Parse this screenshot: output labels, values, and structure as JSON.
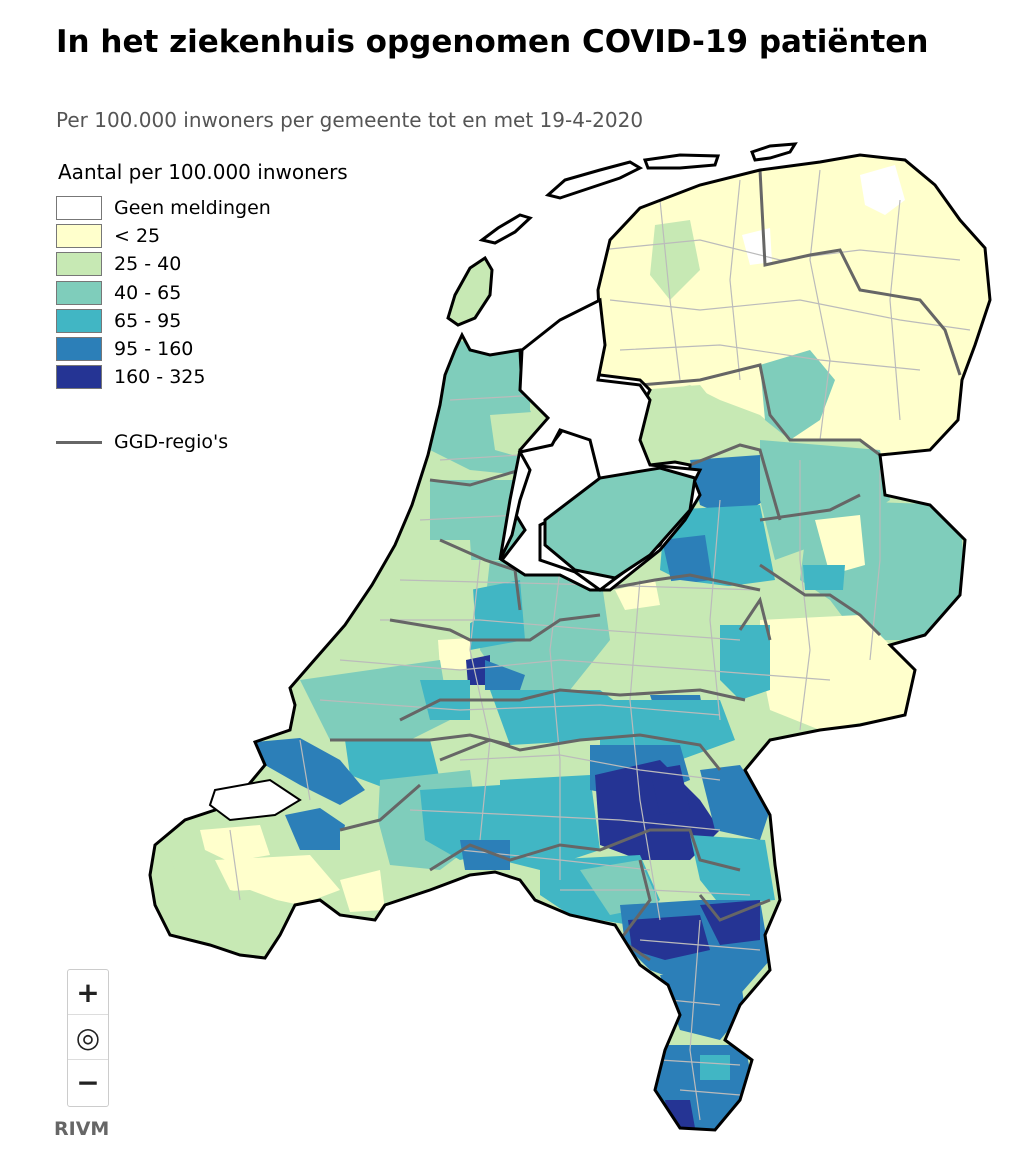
{
  "header": {
    "title": "In het ziekenhuis opgenomen COVID-19 patiënten",
    "subtitle": "Per 100.000 inwoners per gemeente tot en met 19-4-2020"
  },
  "legend": {
    "title": "Aantal per 100.000 inwoners",
    "classes": [
      {
        "label": "Geen meldingen",
        "color": "#ffffff"
      },
      {
        "label": "< 25",
        "color": "#ffffcc"
      },
      {
        "label": "25 - 40",
        "color": "#c7e9b4"
      },
      {
        "label": "40 - 65",
        "color": "#7fcdbb"
      },
      {
        "label": "65 - 95",
        "color": "#41b6c4"
      },
      {
        "label": "95 - 160",
        "color": "#2c7fb8"
      },
      {
        "label": "160 - 325",
        "color": "#253494"
      }
    ],
    "ggd_label": "GGD-regio's"
  },
  "controls": {
    "zoom_in": "+",
    "reset": "◎",
    "zoom_out": "−"
  },
  "brand": "RIVM",
  "colors": {
    "border_municipality": "#bbbbbb",
    "border_ggd": "#666666",
    "coast": "#000000"
  }
}
